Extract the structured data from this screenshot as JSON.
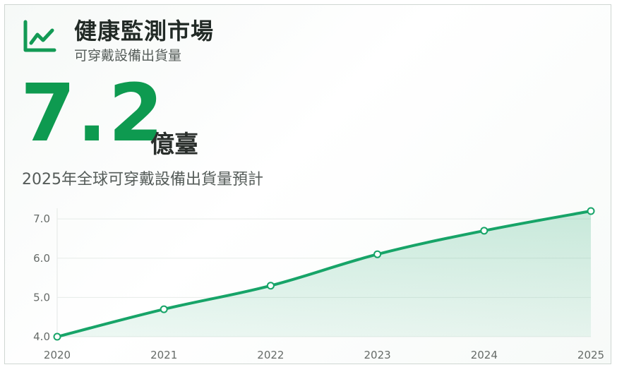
{
  "header": {
    "icon": "line-chart-icon",
    "accent": "#0e9a50",
    "title": "健康監測市場",
    "subtitle": "可穿戴設備出貨量"
  },
  "headline": {
    "value": "7.2",
    "unit": "億臺",
    "description": "2025年全球可穿戴設備出貨量預計"
  },
  "chart_data": {
    "type": "area",
    "x": [
      "2020",
      "2021",
      "2022",
      "2023",
      "2024",
      "2025"
    ],
    "series": [
      {
        "values": [
          4.0,
          4.7,
          5.3,
          6.1,
          6.7,
          7.2
        ]
      }
    ],
    "yticks": [
      "4.0",
      "5.0",
      "6.0",
      "7.0"
    ],
    "ylim": [
      4.0,
      7.2
    ],
    "grid": true,
    "color": "#17a468"
  }
}
